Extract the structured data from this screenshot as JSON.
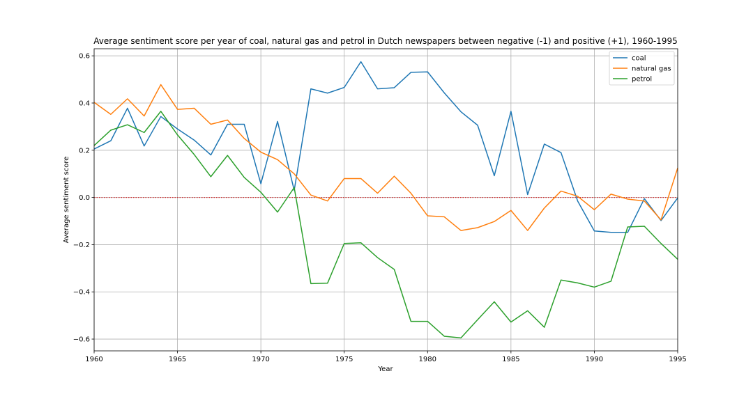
{
  "chart_data": {
    "type": "line",
    "title": "Average sentiment score per year of coal, natural gas and petrol in Dutch newspapers between negative (-1) and positive (+1), 1960-1995",
    "xlabel": "Year",
    "ylabel": "Average sentiment score",
    "xlim": [
      1960,
      1995
    ],
    "ylim": [
      -0.65,
      0.63
    ],
    "xticks": [
      1960,
      1965,
      1970,
      1975,
      1980,
      1985,
      1990,
      1995
    ],
    "yticks": [
      -0.6,
      -0.4,
      -0.2,
      0.0,
      0.2,
      0.4,
      0.6
    ],
    "ytick_labels": [
      "−0.6",
      "−0.4",
      "−0.2",
      "0.0",
      "0.2",
      "0.4",
      "0.6"
    ],
    "grid": true,
    "legend_position": "top-right",
    "reference_line": {
      "y": 0.0,
      "color": "#d62728",
      "style": "dotted"
    },
    "x": [
      1960,
      1961,
      1962,
      1963,
      1964,
      1965,
      1966,
      1967,
      1968,
      1969,
      1970,
      1971,
      1972,
      1973,
      1974,
      1975,
      1976,
      1977,
      1978,
      1979,
      1980,
      1981,
      1982,
      1983,
      1984,
      1985,
      1986,
      1987,
      1988,
      1989,
      1990,
      1991,
      1992,
      1993,
      1994,
      1995
    ],
    "series": [
      {
        "name": "coal",
        "color": "#1f77b4",
        "values": [
          0.205,
          0.24,
          0.378,
          0.218,
          0.343,
          0.29,
          0.243,
          0.18,
          0.31,
          0.31,
          0.058,
          0.322,
          0.03,
          0.46,
          0.442,
          0.466,
          0.575,
          0.46,
          0.465,
          0.53,
          0.532,
          0.443,
          0.363,
          0.306,
          0.092,
          0.365,
          0.012,
          0.226,
          0.19,
          -0.015,
          -0.142,
          -0.148,
          -0.148,
          -0.005,
          -0.098,
          -0.002
        ]
      },
      {
        "name": "natural gas",
        "color": "#ff7f0e",
        "values": [
          0.403,
          0.352,
          0.418,
          0.345,
          0.478,
          0.373,
          0.378,
          0.31,
          0.328,
          0.25,
          0.192,
          0.16,
          0.1,
          0.01,
          -0.015,
          0.08,
          0.08,
          0.018,
          0.09,
          0.018,
          -0.078,
          -0.082,
          -0.14,
          -0.128,
          -0.102,
          -0.055,
          -0.14,
          -0.045,
          0.027,
          0.005,
          -0.052,
          0.014,
          -0.007,
          -0.015,
          -0.095,
          0.125
        ]
      },
      {
        "name": "petrol",
        "color": "#2ca02c",
        "values": [
          0.22,
          0.285,
          0.308,
          0.275,
          0.365,
          0.265,
          0.182,
          0.088,
          0.178,
          0.085,
          0.022,
          -0.062,
          0.042,
          -0.365,
          -0.363,
          -0.195,
          -0.192,
          -0.255,
          -0.305,
          -0.525,
          -0.525,
          -0.588,
          -0.595,
          -0.518,
          -0.442,
          -0.528,
          -0.48,
          -0.55,
          -0.35,
          -0.362,
          -0.38,
          -0.355,
          -0.125,
          -0.122,
          -0.195,
          -0.262
        ]
      }
    ]
  }
}
